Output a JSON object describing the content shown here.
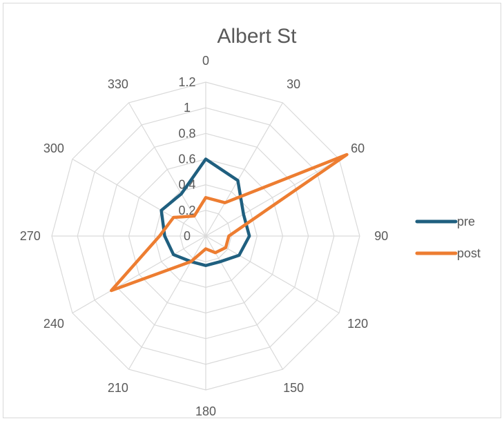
{
  "chart_data": {
    "type": "radar",
    "title": "Albert St",
    "categories": [
      "0",
      "30",
      "60",
      "90",
      "120",
      "150",
      "180",
      "210",
      "240",
      "270",
      "300",
      "330"
    ],
    "r_ticks": [
      "0",
      "0.2",
      "0.4",
      "0.6",
      "0.8",
      "1",
      "1.2"
    ],
    "rlim": [
      0,
      1.2
    ],
    "grid": true,
    "legend_position": "right",
    "series": [
      {
        "name": "pre",
        "color": "#1f5f7f",
        "values": [
          0.6,
          0.5,
          0.34,
          0.34,
          0.3,
          0.23,
          0.23,
          0.23,
          0.29,
          0.32,
          0.4,
          0.38
        ]
      },
      {
        "name": "post",
        "color": "#ed7d31",
        "values": [
          0.3,
          0.3,
          1.27,
          0.18,
          0.18,
          0.15,
          0.1,
          0.23,
          0.85,
          0.36,
          0.29,
          0.18
        ]
      }
    ]
  }
}
